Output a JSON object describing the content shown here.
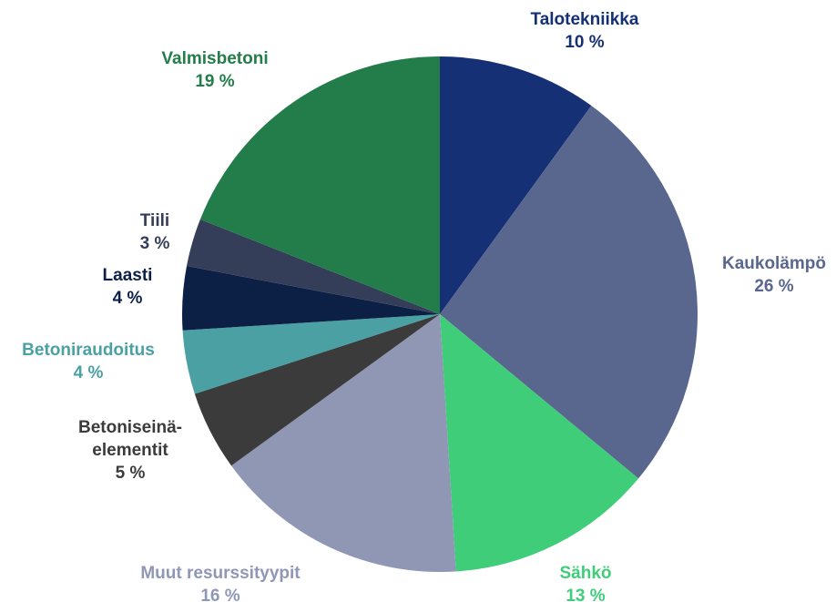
{
  "chart_data": {
    "type": "pie",
    "categories": [
      "Talotekniikka",
      "Kaukolämpö",
      "Sähkö",
      "Muut resurssityypit",
      "Betoniseinä-elementit",
      "Betoniraudoitus",
      "Laasti",
      "Tiili",
      "Valmisbetoni"
    ],
    "values": [
      10,
      26,
      13,
      16,
      5,
      4,
      4,
      3,
      19
    ],
    "value_labels": [
      "10 %",
      "26 %",
      "13 %",
      "16 %",
      "5 %",
      "4 %",
      "4 %",
      "3 %",
      "19 %"
    ],
    "colors": [
      "#153075",
      "#59678f",
      "#3fcd7a",
      "#8f97b5",
      "#3b3b3b",
      "#4aa0a3",
      "#0c1f45",
      "#343e58",
      "#237d4a"
    ]
  }
}
